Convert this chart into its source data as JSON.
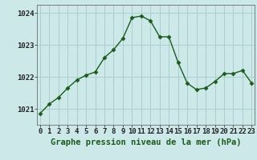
{
  "hours": [
    0,
    1,
    2,
    3,
    4,
    5,
    6,
    7,
    8,
    9,
    10,
    11,
    12,
    13,
    14,
    15,
    16,
    17,
    18,
    19,
    20,
    21,
    22,
    23
  ],
  "pressure": [
    1020.85,
    1021.15,
    1021.35,
    1021.65,
    1021.9,
    1022.05,
    1022.15,
    1022.6,
    1022.85,
    1023.2,
    1023.85,
    1023.9,
    1023.75,
    1023.25,
    1023.25,
    1022.45,
    1021.8,
    1021.6,
    1021.65,
    1021.85,
    1022.1,
    1022.1,
    1022.2,
    1021.8
  ],
  "line_color": "#1a5c1a",
  "marker": "D",
  "marker_size": 2.5,
  "background_color": "#cce8e8",
  "grid_color": "#aacece",
  "xlabel": "Graphe pression niveau de la mer (hPa)",
  "xlabel_fontsize": 7.5,
  "tick_label_fontsize": 6.5,
  "ylim": [
    1020.5,
    1024.25
  ],
  "yticks": [
    1021,
    1022,
    1023,
    1024
  ],
  "xlim": [
    -0.3,
    23.3
  ],
  "line_width": 1.0
}
